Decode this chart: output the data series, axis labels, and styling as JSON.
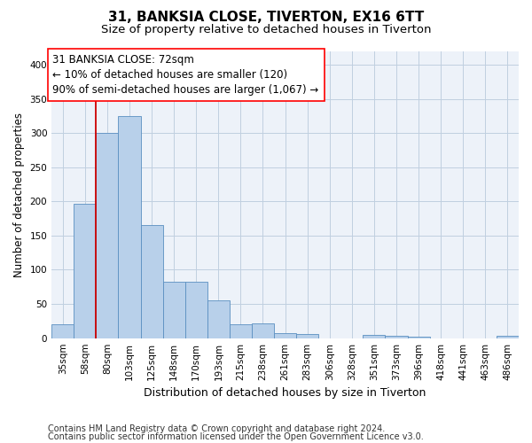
{
  "title1": "31, BANKSIA CLOSE, TIVERTON, EX16 6TT",
  "title2": "Size of property relative to detached houses in Tiverton",
  "xlabel": "Distribution of detached houses by size in Tiverton",
  "ylabel": "Number of detached properties",
  "footnote1": "Contains HM Land Registry data © Crown copyright and database right 2024.",
  "footnote2": "Contains public sector information licensed under the Open Government Licence v3.0.",
  "categories": [
    "35sqm",
    "58sqm",
    "80sqm",
    "103sqm",
    "125sqm",
    "148sqm",
    "170sqm",
    "193sqm",
    "215sqm",
    "238sqm",
    "261sqm",
    "283sqm",
    "306sqm",
    "328sqm",
    "351sqm",
    "373sqm",
    "396sqm",
    "418sqm",
    "441sqm",
    "463sqm",
    "486sqm"
  ],
  "values": [
    20,
    197,
    300,
    325,
    165,
    83,
    83,
    55,
    20,
    22,
    7,
    6,
    0,
    0,
    5,
    4,
    2,
    0,
    0,
    0,
    3
  ],
  "bar_color": "#b8d0ea",
  "bar_edge_color": "#5a8fc0",
  "annotation_line1": "31 BANKSIA CLOSE: 72sqm",
  "annotation_line2": "← 10% of detached houses are smaller (120)",
  "annotation_line3": "90% of semi-detached houses are larger (1,067) →",
  "vline_bar_index": 2,
  "ylim": [
    0,
    420
  ],
  "yticks": [
    0,
    50,
    100,
    150,
    200,
    250,
    300,
    350,
    400
  ],
  "annotation_fontsize": 8.5,
  "title1_fontsize": 11,
  "title2_fontsize": 9.5,
  "xlabel_fontsize": 9,
  "ylabel_fontsize": 8.5,
  "tick_fontsize": 7.5,
  "footnote_fontsize": 7,
  "grid_color": "#c0cfe0",
  "bg_color": "#edf2f9"
}
